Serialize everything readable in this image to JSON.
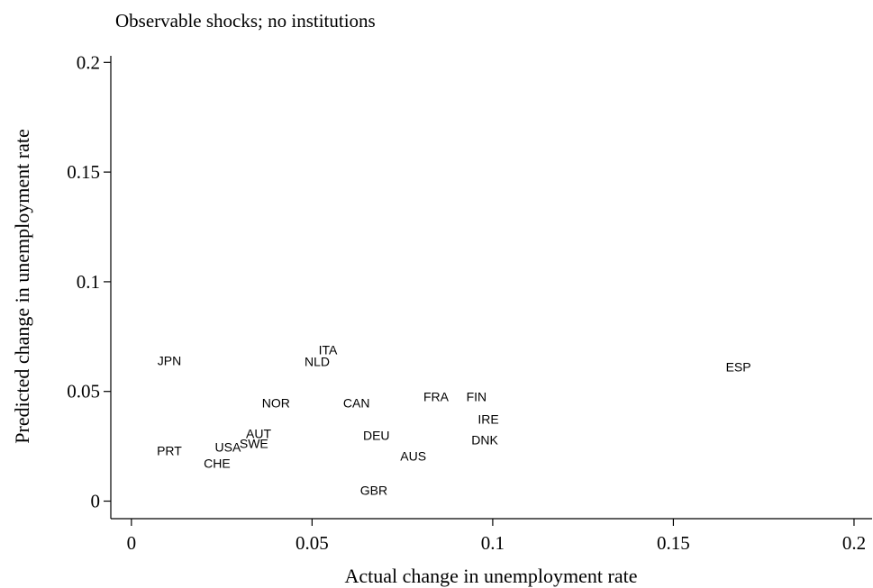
{
  "chart_data": {
    "type": "scatter",
    "title": "Observable shocks; no institutions",
    "xlabel": "Actual change in unemployment rate",
    "ylabel": "Predicted change in unemployment rate",
    "labels": [
      "JPN",
      "ITA",
      "NLD",
      "ESP",
      "NOR",
      "CAN",
      "FRA",
      "FIN",
      "IRE",
      "DNK",
      "DEU",
      "AUS",
      "GBR",
      "AUT",
      "SWE",
      "USA",
      "PRT",
      "CHE"
    ],
    "x": [
      0.0105,
      0.0544,
      0.0514,
      0.168,
      0.04,
      0.0623,
      0.0843,
      0.0955,
      0.0988,
      0.0978,
      0.0678,
      0.078,
      0.0671,
      0.0352,
      0.0339,
      0.0267,
      0.0105,
      0.0237
    ],
    "y": [
      0.064,
      0.069,
      0.0637,
      0.0612,
      0.0448,
      0.0448,
      0.0476,
      0.0476,
      0.0374,
      0.0279,
      0.03,
      0.0205,
      0.0049,
      0.0308,
      0.0263,
      0.0246,
      0.023,
      0.0172
    ],
    "xlim": [
      -0.0057,
      0.205
    ],
    "ylim": [
      -0.008,
      0.203
    ],
    "xticks": [
      0,
      0.05,
      0.1,
      0.15,
      0.2
    ],
    "yticks": [
      0,
      0.05,
      0.1,
      0.15,
      0.2
    ]
  }
}
